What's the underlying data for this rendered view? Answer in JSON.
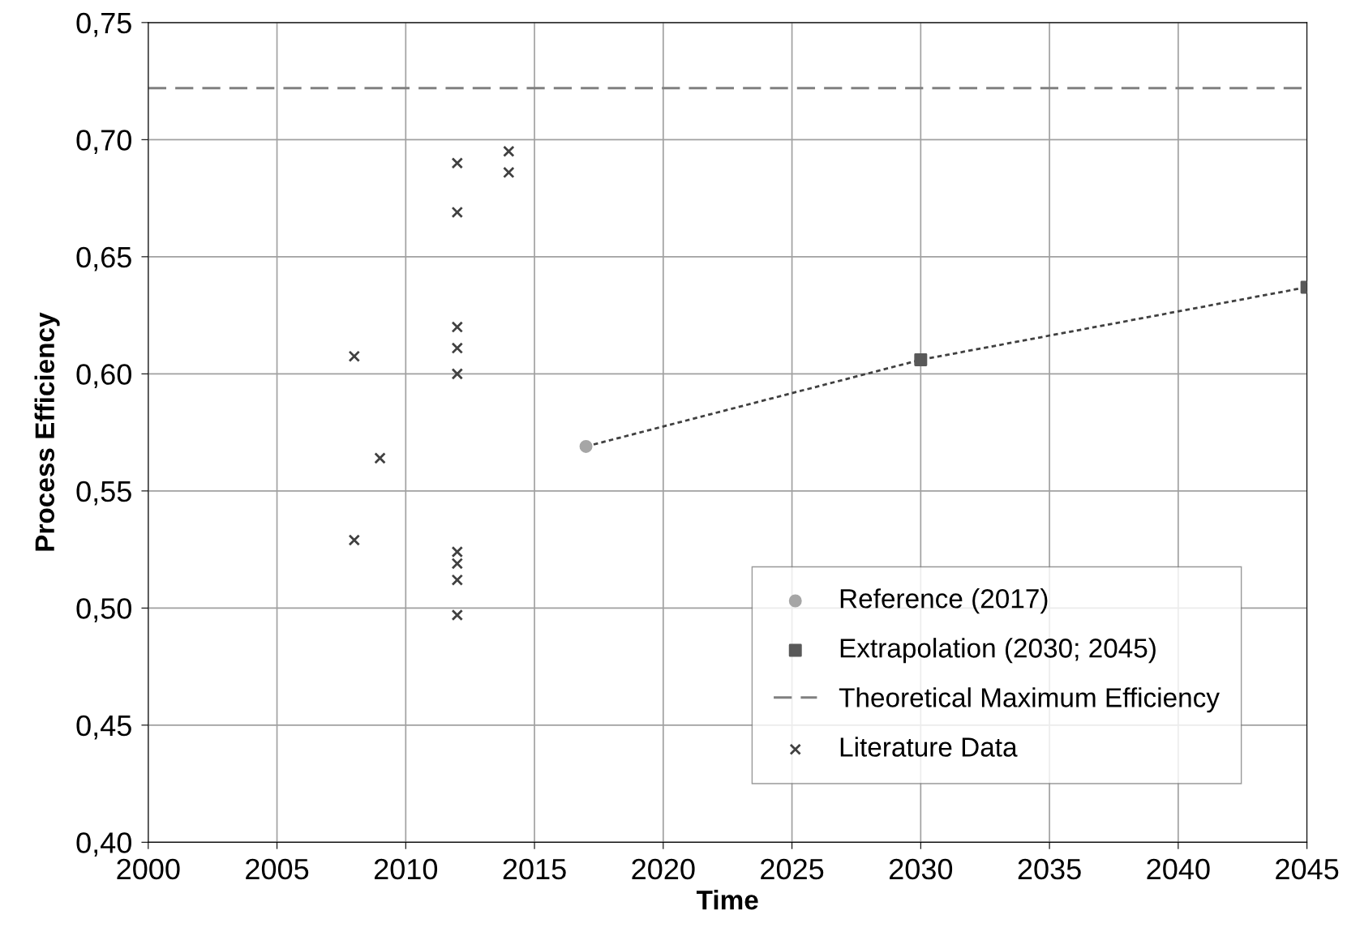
{
  "chart_data": {
    "type": "scatter",
    "xlabel": "Time",
    "ylabel": "Process Efficiency",
    "xlim": [
      2000,
      2045
    ],
    "xticks": [
      2000,
      2005,
      2010,
      2015,
      2020,
      2025,
      2030,
      2035,
      2040,
      2045
    ],
    "ylim": [
      0.4,
      0.75
    ],
    "yticks": [
      {
        "value": 0.4,
        "label": "0,40"
      },
      {
        "value": 0.45,
        "label": "0,45"
      },
      {
        "value": 0.5,
        "label": "0,50"
      },
      {
        "value": 0.55,
        "label": "0,55"
      },
      {
        "value": 0.6,
        "label": "0,60"
      },
      {
        "value": 0.65,
        "label": "0,65"
      },
      {
        "value": 0.7,
        "label": "0,70"
      },
      {
        "value": 0.75,
        "label": "0,75"
      }
    ],
    "grid": true,
    "legend": "bottom right",
    "series": [
      {
        "type": "line",
        "x": [
          2017,
          2030,
          2045
        ],
        "values": [
          0.569,
          0.606,
          0.637
        ],
        "color": "#404040",
        "line_style": "dotted",
        "marker": "none"
      },
      {
        "name": "Reference (2017)",
        "x": [
          2017
        ],
        "values": [
          0.569
        ],
        "color": "#a6a6a6",
        "marker": "circle"
      },
      {
        "name": "Extrapolation (2030; 2045)",
        "x": [
          2030,
          2045
        ],
        "values": [
          0.606,
          0.637
        ],
        "color": "#595959",
        "marker": "square"
      },
      {
        "name": "Theoretical Maximum Efficiency",
        "type": "line",
        "x": [
          2000,
          2045
        ],
        "values": [
          0.722,
          0.722
        ],
        "color": "#808080",
        "line_style": "dashed",
        "marker": "none"
      },
      {
        "name": "Literature Data",
        "x": [
          2008,
          2008,
          2009,
          2012,
          2012,
          2012,
          2012,
          2012,
          2012,
          2012,
          2012,
          2012,
          2014,
          2014
        ],
        "values": [
          0.6075,
          0.529,
          0.564,
          0.69,
          0.669,
          0.62,
          0.611,
          0.6,
          0.524,
          0.519,
          0.512,
          0.497,
          0.695,
          0.686
        ],
        "color": "#404040",
        "marker": "cross"
      }
    ]
  }
}
